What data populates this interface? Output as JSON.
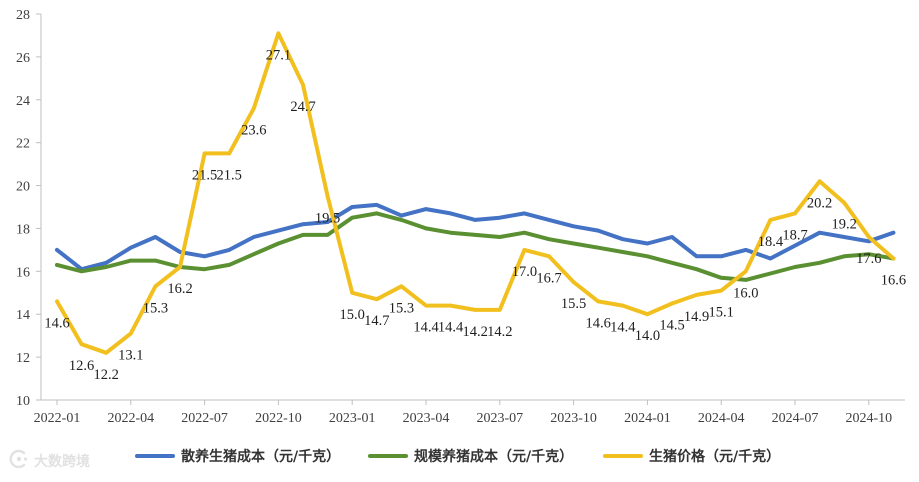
{
  "chart_data": {
    "type": "line",
    "x": [
      "2022-01",
      "2022-02",
      "2022-03",
      "2022-04",
      "2022-05",
      "2022-06",
      "2022-07",
      "2022-08",
      "2022-09",
      "2022-10",
      "2022-11",
      "2022-12",
      "2023-01",
      "2023-02",
      "2023-03",
      "2023-04",
      "2023-05",
      "2023-06",
      "2023-07",
      "2023-08",
      "2023-09",
      "2023-10",
      "2023-11",
      "2023-12",
      "2024-01",
      "2024-02",
      "2024-03",
      "2024-04",
      "2024-05",
      "2024-06",
      "2024-07",
      "2024-08",
      "2024-09",
      "2024-10",
      "2024-11"
    ],
    "xticks": [
      "2022-01",
      "2022-04",
      "2022-07",
      "2022-10",
      "2023-01",
      "2023-04",
      "2023-07",
      "2023-10",
      "2024-01",
      "2024-04",
      "2024-07",
      "2024-10"
    ],
    "ylim": [
      10,
      28
    ],
    "yticks": [
      10,
      12,
      14,
      16,
      18,
      20,
      22,
      24,
      26,
      28
    ],
    "grid": false,
    "legend": "bottom",
    "series": [
      {
        "name": "散养生猪成本（元/千克）",
        "color": "#4472c4",
        "values": [
          17.0,
          16.1,
          16.4,
          17.1,
          17.6,
          16.9,
          16.7,
          17.0,
          17.6,
          17.9,
          18.2,
          18.3,
          19.0,
          19.1,
          18.6,
          18.9,
          18.7,
          18.4,
          18.5,
          18.7,
          18.4,
          18.1,
          17.9,
          17.5,
          17.3,
          17.6,
          16.7,
          16.7,
          17.0,
          16.6,
          17.2,
          17.8,
          17.6,
          17.4,
          17.8
        ]
      },
      {
        "name": "规模养猪成本（元/千克）",
        "color": "#5b9032",
        "values": [
          16.3,
          16.0,
          16.2,
          16.5,
          16.5,
          16.2,
          16.1,
          16.3,
          16.8,
          17.3,
          17.7,
          17.7,
          18.5,
          18.7,
          18.4,
          18.0,
          17.8,
          17.7,
          17.6,
          17.8,
          17.5,
          17.3,
          17.1,
          16.9,
          16.7,
          16.4,
          16.1,
          15.7,
          15.6,
          15.9,
          16.2,
          16.4,
          16.7,
          16.8,
          16.6
        ]
      },
      {
        "name": "生猪价格（元/千克）",
        "color": "#f2c01e",
        "data_labels": true,
        "values": [
          14.6,
          12.6,
          12.2,
          13.1,
          15.3,
          16.2,
          21.5,
          21.5,
          23.6,
          27.1,
          24.7,
          19.5,
          15.0,
          14.7,
          15.3,
          14.4,
          14.4,
          14.2,
          14.2,
          17.0,
          16.7,
          15.5,
          14.6,
          14.4,
          14.0,
          14.5,
          14.9,
          15.1,
          16.0,
          18.4,
          18.7,
          20.2,
          19.2,
          17.6,
          16.6
        ]
      }
    ]
  },
  "watermark": {
    "text": "大数跨境",
    "icon": "brand-logo-icon"
  }
}
